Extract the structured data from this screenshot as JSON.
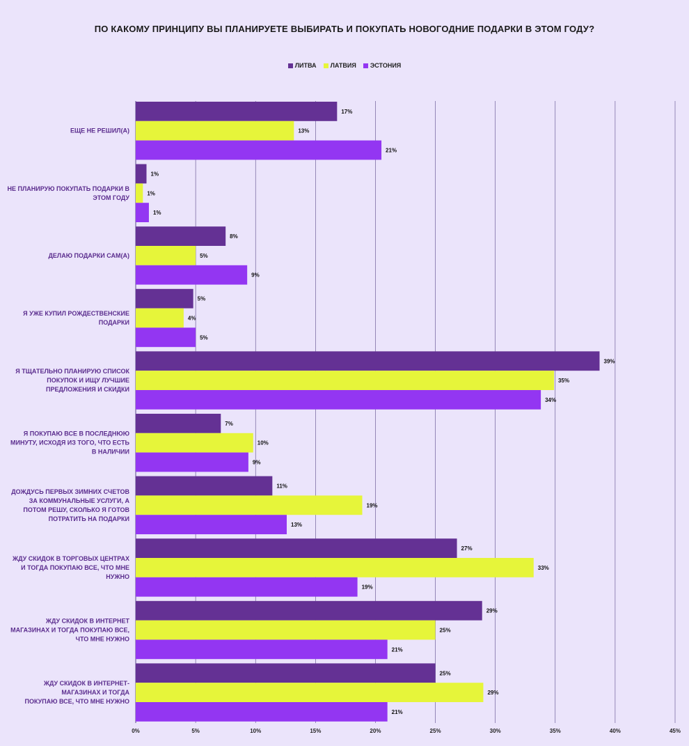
{
  "chart_data": {
    "type": "bar",
    "orientation": "horizontal",
    "title": "ПО КАКОМУ ПРИНЦИПУ ВЫ ПЛАНИРУЕТЕ ВЫБИРАТЬ И ПОКУПАТЬ НОВОГОДНИЕ ПОДАРКИ В ЭТОМ ГОДУ?",
    "legend_position": "top-center",
    "grid": true,
    "xlim": [
      0,
      45
    ],
    "x_ticks": [
      "0%",
      "5%",
      "10%",
      "15%",
      "20%",
      "25%",
      "30%",
      "35%",
      "40%",
      "45%"
    ],
    "categories": [
      [
        "ЕЩЕ НЕ РЕШИЛ(А)"
      ],
      [
        "НЕ ПЛАНИРУЮ ПОКУПАТЬ ПОДАРКИ В",
        "ЭТОМ ГОДУ"
      ],
      [
        "ДЕЛАЮ ПОДАРКИ САМ(А)"
      ],
      [
        "Я УЖЕ КУПИЛ РОЖДЕСТВЕНСКИЕ",
        "ПОДАРКИ"
      ],
      [
        "Я ТЩАТЕЛЬНО ПЛАНИРУЮ СПИСОК",
        "ПОКУПОК И ИЩУ ЛУЧШИЕ",
        "ПРЕДЛОЖЕНИЯ И СКИДКИ"
      ],
      [
        "Я ПОКУПАЮ ВСЕ В ПОСЛЕДНЮЮ",
        "МИНУТУ, ИСХОДЯ ИЗ ТОГО, ЧТО ЕСТЬ",
        "В НАЛИЧИИ"
      ],
      [
        "ДОЖДУСЬ ПЕРВЫХ ЗИМНИХ СЧЕТОВ",
        "ЗА КОММУНАЛЬНЫЕ УСЛУГИ, А",
        "ПОТОМ РЕШУ, СКОЛЬКО Я ГОТОВ",
        "ПОТРАТИТЬ НА ПОДАРКИ"
      ],
      [
        "ЖДУ СКИДОК В ТОРГОВЫХ ЦЕНТРАХ",
        "И ТОГДА ПОКУПАЮ ВСЕ, ЧТО МНЕ",
        "НУЖНО"
      ],
      [
        "ЖДУ СКИДОК В ИНТЕРНЕТ",
        "МАГАЗИНАХ И ТОГДА ПОКУПАЮ ВСЕ,",
        "ЧТО МНЕ НУЖНО"
      ],
      [
        "ЖДУ СКИДОК В ИНТЕРНЕТ-",
        "МАГАЗИНАХ И ТОГДА",
        "ПОКУПАЮ ВСЕ, ЧТО МНЕ НУЖНО"
      ]
    ],
    "series": [
      {
        "name": "ЛИТВА",
        "color": "#643194",
        "values": [
          16.8,
          0.9,
          7.5,
          4.8,
          38.7,
          7.1,
          11.4,
          26.8,
          28.9,
          25.0
        ],
        "labels": [
          "17%",
          "1%",
          "8%",
          "5%",
          "39%",
          "7%",
          "11%",
          "27%",
          "29%",
          "25%"
        ]
      },
      {
        "name": "ЛАТВИЯ",
        "color": "#e6f53a",
        "values": [
          13.2,
          0.6,
          5.0,
          4.0,
          34.9,
          9.8,
          18.9,
          33.2,
          25.0,
          29.0
        ],
        "labels": [
          "13%",
          "1%",
          "5%",
          "4%",
          "35%",
          "10%",
          "19%",
          "33%",
          "25%",
          "29%"
        ]
      },
      {
        "name": "ЭСТОНИЯ",
        "color": "#9336f2",
        "values": [
          20.5,
          1.1,
          9.3,
          5.0,
          33.8,
          9.4,
          12.6,
          18.5,
          21.0,
          21.0
        ],
        "labels": [
          "21%",
          "1%",
          "9%",
          "5%",
          "34%",
          "9%",
          "13%",
          "19%",
          "21%",
          "21%"
        ]
      }
    ]
  },
  "colors": {
    "background": "#ebe4fb",
    "grid": "#5a4a8a",
    "category_text": "#5b2d8e"
  }
}
